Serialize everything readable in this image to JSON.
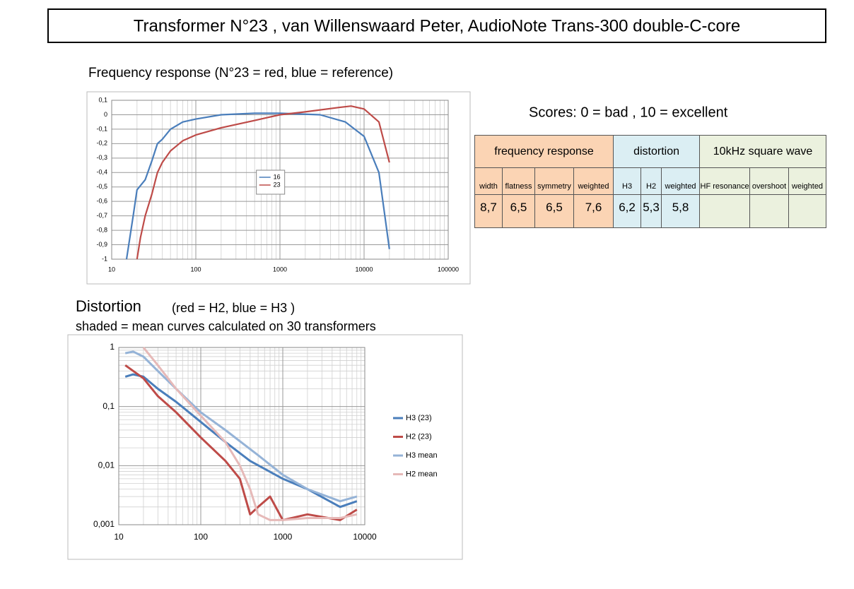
{
  "title": "Transformer N°23 ,  van Willenswaard  Peter,    AudioNote Trans-300 double-C-core",
  "scores": "Scores:   0 = bad ,   10 = excellent",
  "table": {
    "groups": [
      "frequency response",
      "distortion",
      "10kHz  square wave"
    ],
    "columns": [
      "width",
      "flatness",
      "symmetry",
      "weighted",
      "H3",
      "H2",
      "weighted",
      "HF resonance",
      "overshoot",
      "weighted"
    ],
    "values": [
      "8,7",
      "6,5",
      "6,5",
      "7,6",
      "6,2",
      "5,3",
      "5,8"
    ]
  },
  "chart_data": [
    {
      "type": "line",
      "title": "Frequency response  (N°23 = red,   blue = reference)",
      "log_x": true,
      "grid": true,
      "legend": "center",
      "xlim": [
        10,
        100000
      ],
      "xticks": [
        10,
        100,
        1000,
        10000,
        100000
      ],
      "ylim": [
        -1,
        0.1
      ],
      "yticks": [
        {
          "value": 0.1,
          "label": "0,1"
        },
        0,
        {
          "value": -0.1,
          "label": "-0,1"
        },
        {
          "value": -0.2,
          "label": "-0,2"
        },
        {
          "value": -0.3,
          "label": "-0,3"
        },
        {
          "value": -0.4,
          "label": "-0,4"
        },
        {
          "value": -0.5,
          "label": "-0,5"
        },
        {
          "value": -0.6,
          "label": "-0,6"
        },
        {
          "value": -0.7,
          "label": "-0,7"
        },
        {
          "value": -0.8,
          "label": "-0,8"
        },
        {
          "value": -0.9,
          "label": "-0,9"
        },
        -1
      ],
      "series": [
        {
          "name": "16",
          "color": "#4a7ebb",
          "x": [
            15,
            18,
            20,
            25,
            30,
            35,
            40,
            50,
            70,
            100,
            200,
            500,
            1000,
            3000,
            6000,
            10000,
            15000,
            20000
          ],
          "values": [
            -1,
            -0.7,
            -0.52,
            -0.45,
            -0.32,
            -0.2,
            -0.17,
            -0.1,
            -0.05,
            -0.03,
            0,
            0.01,
            0.01,
            0,
            -0.05,
            -0.15,
            -0.4,
            -0.93
          ]
        },
        {
          "name": "23",
          "color": "#be4b48",
          "x": [
            20,
            22,
            25,
            30,
            35,
            40,
            50,
            70,
            100,
            200,
            500,
            1000,
            2000,
            5000,
            7000,
            10000,
            15000,
            20000
          ],
          "values": [
            -1,
            -0.85,
            -0.7,
            -0.55,
            -0.4,
            -0.33,
            -0.25,
            -0.18,
            -0.14,
            -0.09,
            -0.04,
            0,
            0.02,
            0.05,
            0.06,
            0.04,
            -0.05,
            -0.33
          ]
        }
      ]
    },
    {
      "type": "line",
      "title": "Distortion",
      "subtitle": "(red = H2, blue = H3 )",
      "annotation": "shaded  =  mean curves calculated on 30 transformers",
      "log_x": true,
      "log_y": true,
      "grid": true,
      "legend": "right",
      "xlim": [
        10,
        10000
      ],
      "xticks": [
        10,
        100,
        1000,
        10000
      ],
      "ylim": [
        0.001,
        1
      ],
      "yticks": [
        1,
        {
          "value": 0.1,
          "label": "0,1"
        },
        {
          "value": 0.01,
          "label": "0,01"
        },
        {
          "value": 0.001,
          "label": "0,001"
        }
      ],
      "series": [
        {
          "name": "H3 (23)",
          "color": "#4a7ebb",
          "x": [
            12,
            15,
            20,
            30,
            50,
            100,
            200,
            400,
            1000,
            2000,
            5000,
            8000
          ],
          "values": [
            0.32,
            0.35,
            0.32,
            0.2,
            0.12,
            0.055,
            0.025,
            0.012,
            0.006,
            0.004,
            0.002,
            0.0025
          ]
        },
        {
          "name": "H2 (23)",
          "color": "#be4b48",
          "x": [
            12,
            20,
            30,
            50,
            100,
            200,
            300,
            400,
            500,
            700,
            1000,
            2000,
            5000,
            8000
          ],
          "values": [
            0.5,
            0.3,
            0.15,
            0.08,
            0.03,
            0.012,
            0.006,
            0.0015,
            0.002,
            0.003,
            0.0012,
            0.0015,
            0.0012,
            0.0018
          ]
        },
        {
          "name": "H3 mean",
          "color": "#95b3d7",
          "x": [
            12,
            15,
            20,
            30,
            50,
            100,
            200,
            500,
            1000,
            2000,
            5000,
            8000
          ],
          "values": [
            0.8,
            0.85,
            0.7,
            0.4,
            0.2,
            0.08,
            0.04,
            0.015,
            0.007,
            0.004,
            0.0025,
            0.003
          ]
        },
        {
          "name": "H2 mean",
          "color": "#e6b9b8",
          "x": [
            20,
            30,
            50,
            100,
            200,
            300,
            400,
            500,
            700,
            1000,
            2000,
            5000,
            8000
          ],
          "values": [
            1,
            0.5,
            0.2,
            0.07,
            0.025,
            0.01,
            0.004,
            0.0015,
            0.0012,
            0.0012,
            0.0013,
            0.0013,
            0.0015
          ]
        }
      ]
    }
  ]
}
